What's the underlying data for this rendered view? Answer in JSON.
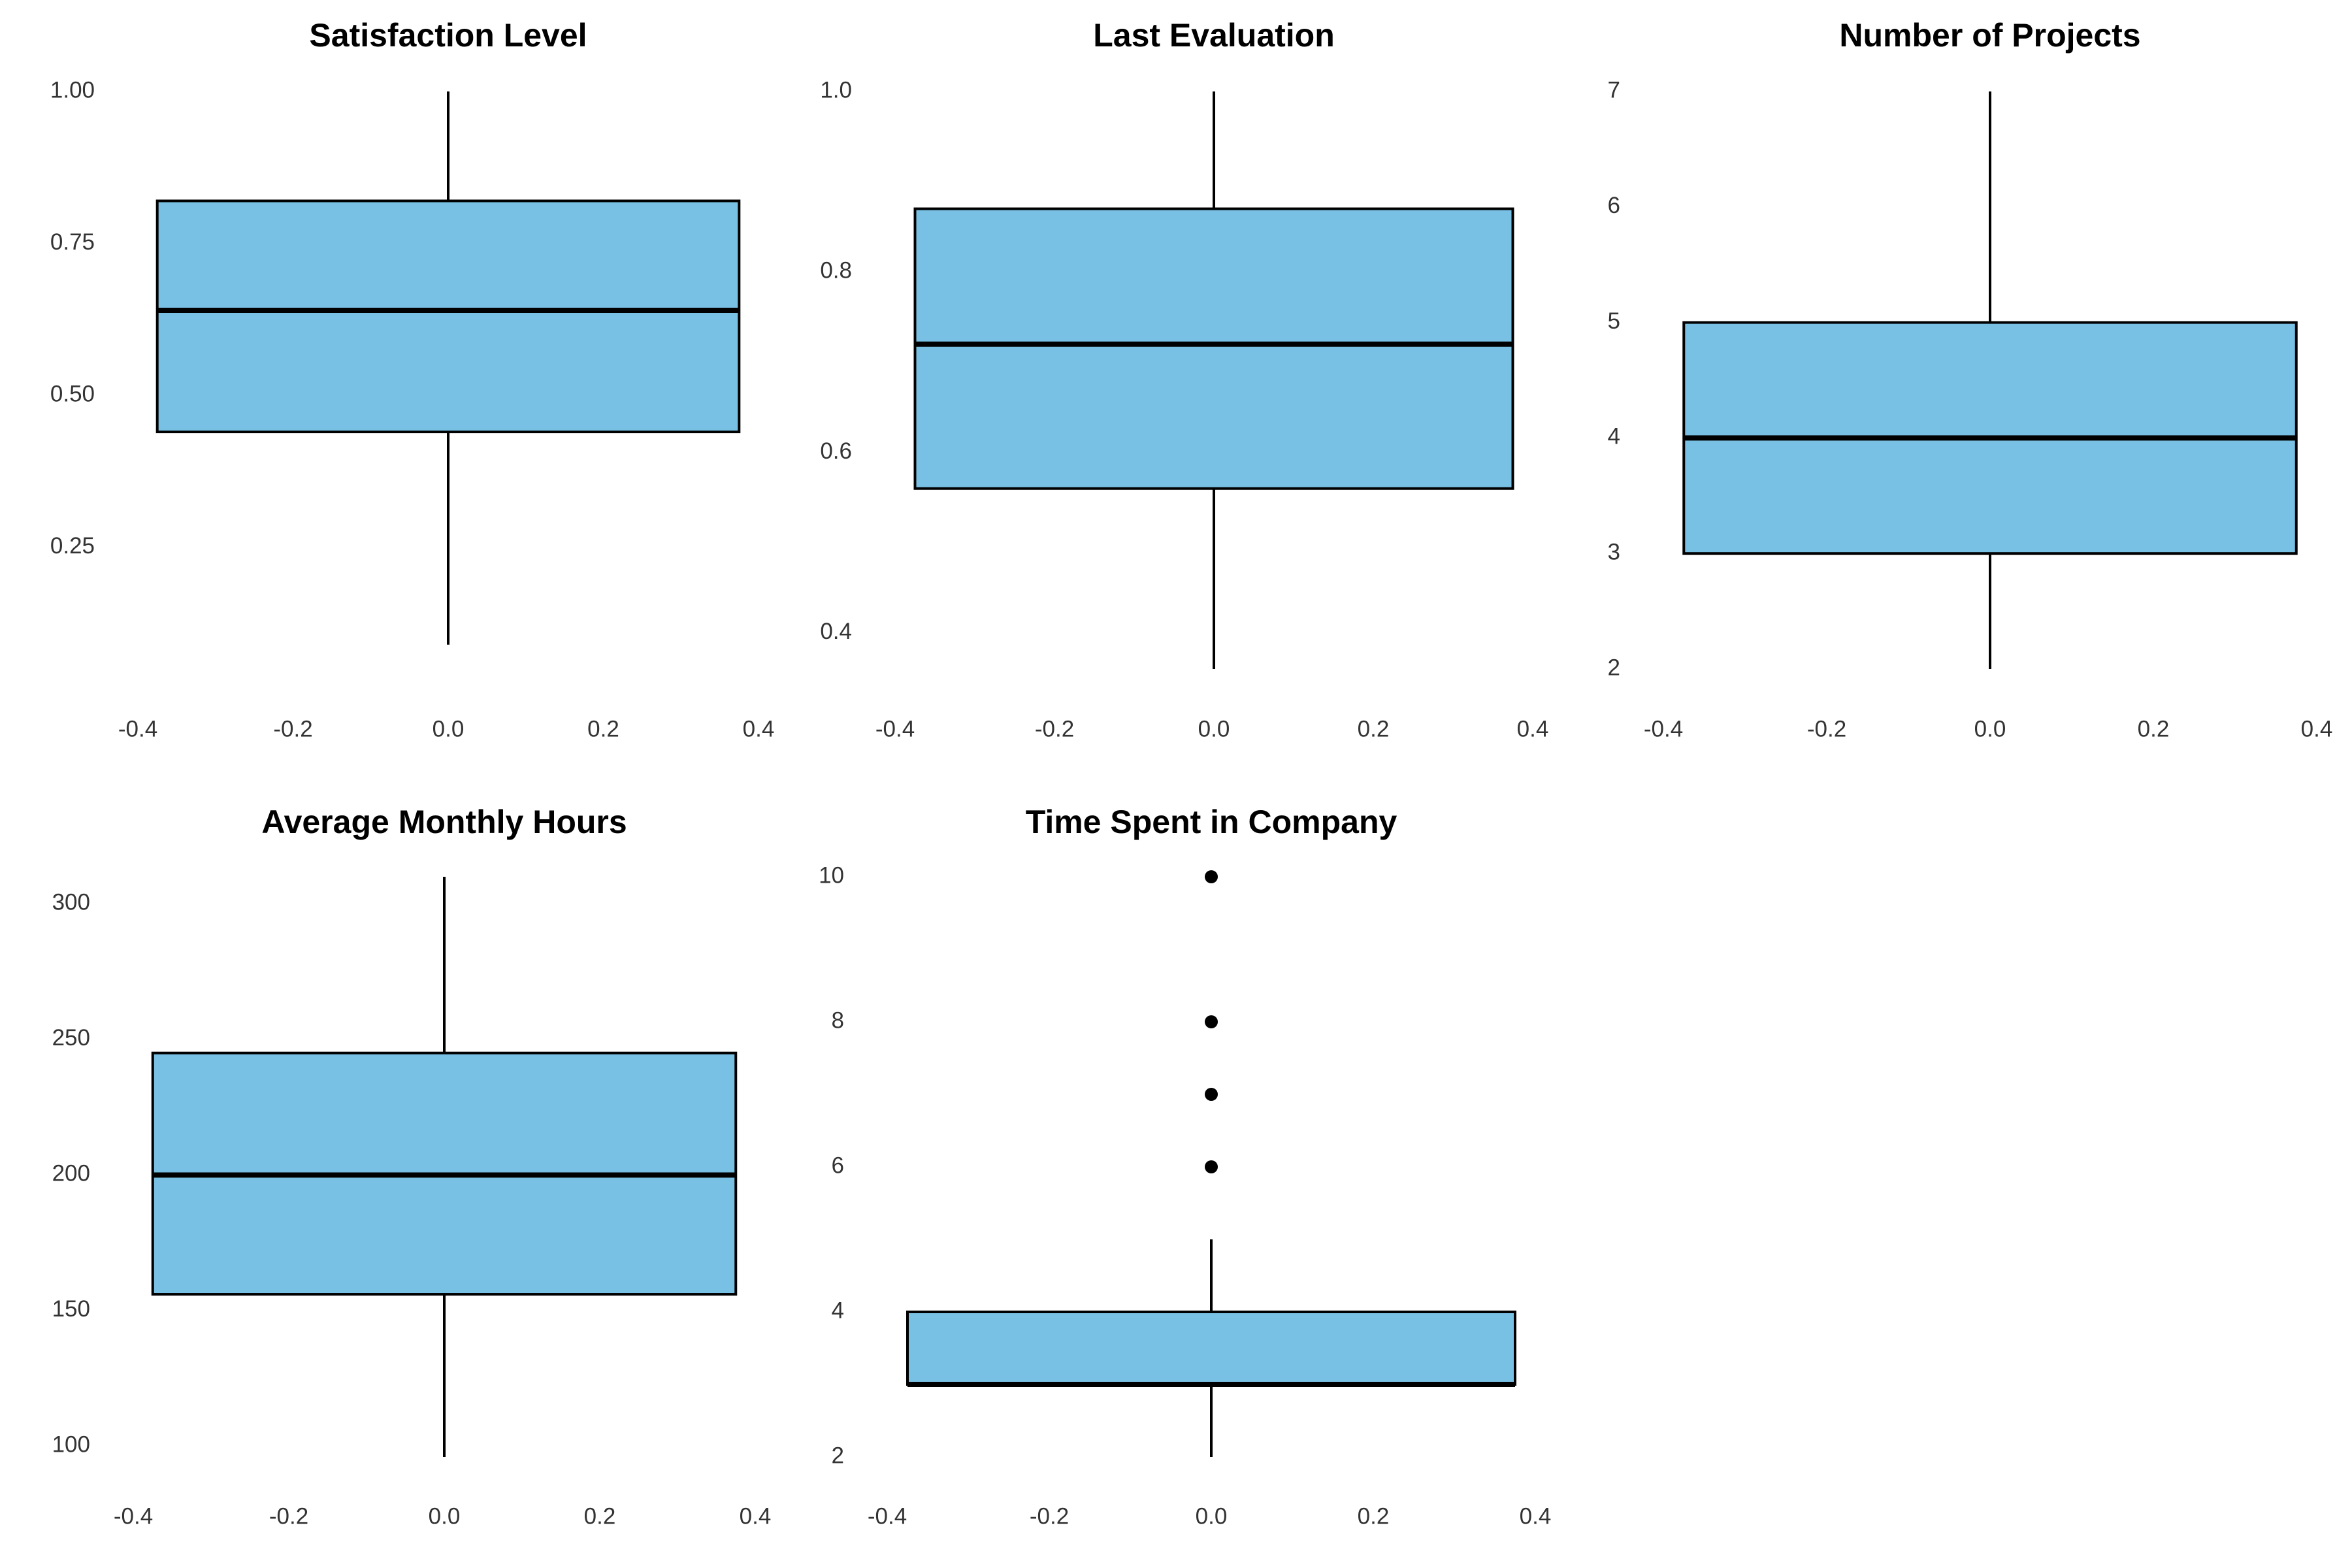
{
  "colors": {
    "box_fill": "#79c1e4",
    "stroke": "#000000",
    "tick_text": "#333333"
  },
  "chart_data": [
    {
      "type": "box",
      "title": "Satisfaction Level",
      "xlim": [
        -0.4,
        0.4
      ],
      "ylim": [
        0.05,
        1.0
      ],
      "x_ticks": [
        "-0.4",
        "-0.2",
        "0.0",
        "0.2",
        "0.4"
      ],
      "x_tick_values": [
        -0.4,
        -0.2,
        0.0,
        0.2,
        0.4
      ],
      "y_ticks": [
        "0.25",
        "0.50",
        "0.75",
        "1.00"
      ],
      "y_tick_values": [
        0.25,
        0.5,
        0.75,
        1.0
      ],
      "box": {
        "x_left": -0.375,
        "x_right": 0.375,
        "whisker_low": 0.09,
        "q1": 0.44,
        "median": 0.64,
        "q3": 0.82,
        "whisker_high": 1.0,
        "outliers": []
      }
    },
    {
      "type": "box",
      "title": "Last Evaluation",
      "xlim": [
        -0.4,
        0.4
      ],
      "ylim": [
        0.36,
        1.0
      ],
      "x_ticks": [
        "-0.4",
        "-0.2",
        "0.0",
        "0.2",
        "0.4"
      ],
      "x_tick_values": [
        -0.4,
        -0.2,
        0.0,
        0.2,
        0.4
      ],
      "y_ticks": [
        "0.4",
        "0.6",
        "0.8",
        "1.0"
      ],
      "y_tick_values": [
        0.4,
        0.6,
        0.8,
        1.0
      ],
      "box": {
        "x_left": -0.375,
        "x_right": 0.375,
        "whisker_low": 0.36,
        "q1": 0.56,
        "median": 0.72,
        "q3": 0.87,
        "whisker_high": 1.0,
        "outliers": []
      }
    },
    {
      "type": "box",
      "title": "Number of Projects",
      "xlim": [
        -0.4,
        0.4
      ],
      "ylim": [
        2,
        7
      ],
      "x_ticks": [
        "-0.4",
        "-0.2",
        "0.0",
        "0.2",
        "0.4"
      ],
      "x_tick_values": [
        -0.4,
        -0.2,
        0.0,
        0.2,
        0.4
      ],
      "y_ticks": [
        "2",
        "3",
        "4",
        "5",
        "6",
        "7"
      ],
      "y_tick_values": [
        2,
        3,
        4,
        5,
        6,
        7
      ],
      "box": {
        "x_left": -0.375,
        "x_right": 0.375,
        "whisker_low": 2,
        "q1": 3,
        "median": 4,
        "q3": 5,
        "whisker_high": 7,
        "outliers": []
      }
    },
    {
      "type": "box",
      "title": "Average Monthly Hours",
      "xlim": [
        -0.4,
        0.4
      ],
      "ylim": [
        96,
        310
      ],
      "x_ticks": [
        "-0.4",
        "-0.2",
        "0.0",
        "0.2",
        "0.4"
      ],
      "x_tick_values": [
        -0.4,
        -0.2,
        0.0,
        0.2,
        0.4
      ],
      "y_ticks": [
        "100",
        "150",
        "200",
        "250",
        "300"
      ],
      "y_tick_values": [
        100,
        150,
        200,
        250,
        300
      ],
      "box": {
        "x_left": -0.375,
        "x_right": 0.375,
        "whisker_low": 96,
        "q1": 156,
        "median": 200,
        "q3": 245,
        "whisker_high": 310,
        "outliers": []
      }
    },
    {
      "type": "box",
      "title": "Time Spent in Company",
      "xlim": [
        -0.4,
        0.4
      ],
      "ylim": [
        2,
        10
      ],
      "x_ticks": [
        "-0.4",
        "-0.2",
        "0.0",
        "0.2",
        "0.4"
      ],
      "x_tick_values": [
        -0.4,
        -0.2,
        0.0,
        0.2,
        0.4
      ],
      "y_ticks": [
        "2",
        "4",
        "6",
        "8",
        "10"
      ],
      "y_tick_values": [
        2,
        4,
        6,
        8,
        10
      ],
      "box": {
        "x_left": -0.375,
        "x_right": 0.375,
        "whisker_low": 2,
        "q1": 3,
        "median": 3,
        "q3": 4,
        "whisker_high": 5,
        "outliers": [
          6,
          7,
          8,
          10
        ]
      }
    }
  ]
}
